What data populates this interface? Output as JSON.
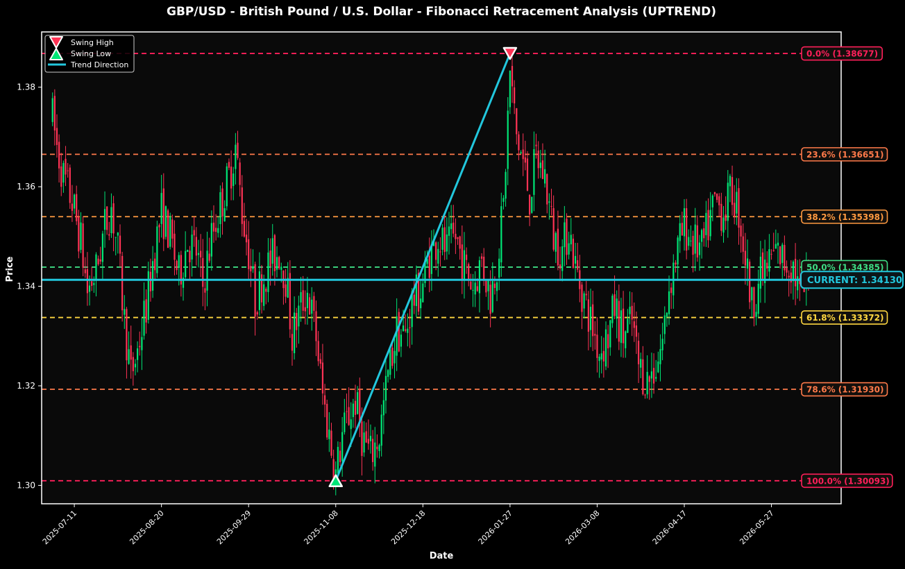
{
  "chart_data": {
    "type": "candlestick",
    "title": "GBP/USD - British Pound / U.S. Dollar - Fibonacci Retracement Analysis (UPTREND)",
    "xlabel": "Date",
    "ylabel": "Price",
    "ylim": [
      1.2963,
      1.3911
    ],
    "yticks": [
      1.3,
      1.32,
      1.34,
      1.36,
      1.38
    ],
    "ytick_labels": [
      "1.30",
      "1.32",
      "1.34",
      "1.36",
      "1.38"
    ],
    "xlim": [
      "2025-06-26",
      "2026-06-28"
    ],
    "xticks": [
      "2025-07-11",
      "2025-08-20",
      "2025-09-29",
      "2025-11-08",
      "2025-12-18",
      "2026-01-27",
      "2026-03-08",
      "2026-04-17",
      "2026-05-27"
    ],
    "grid": false,
    "legend": {
      "position": "top-left",
      "entries": [
        {
          "label": "Swing High",
          "marker": "down-triangle",
          "color": "#ff3355"
        },
        {
          "label": "Swing Low",
          "marker": "up-triangle",
          "color": "#00e676"
        },
        {
          "label": "Trend Direction",
          "marker": "line",
          "color": "#22c7dd"
        }
      ]
    },
    "colors": {
      "background": "#0a0a0a",
      "up_candle": "#00e676",
      "down_candle": "#ff3355",
      "trend": "#22c7dd",
      "current": "#22c7dd"
    },
    "swing_high": {
      "date": "2026-01-27",
      "price": 1.38677
    },
    "swing_low": {
      "date": "2025-11-08",
      "price": 1.30093
    },
    "current": {
      "price": 1.3413,
      "label": "CURRENT: 1.34130"
    },
    "fib_levels": [
      {
        "label": "0.0% (1.38677)",
        "price": 1.38677,
        "color": "#ff1f5a"
      },
      {
        "label": "23.6% (1.36651)",
        "price": 1.36651,
        "color": "#ff7a4a"
      },
      {
        "label": "38.2% (1.35398)",
        "price": 1.35398,
        "color": "#ff9a40"
      },
      {
        "label": "50.0% (1.34385)",
        "price": 1.34385,
        "color": "#3ddc84"
      },
      {
        "label": "61.8% (1.33372)",
        "price": 1.33372,
        "color": "#ffd740"
      },
      {
        "label": "78.6% (1.31930)",
        "price": 1.3193,
        "color": "#ff7a4a"
      },
      {
        "label": "100.0% (1.30093)",
        "price": 1.30093,
        "color": "#ff1f5a"
      }
    ],
    "price_path": [
      [
        "2025-07-01",
        1.374
      ],
      [
        "2025-07-03",
        1.368
      ],
      [
        "2025-07-06",
        1.362
      ],
      [
        "2025-07-10",
        1.357
      ],
      [
        "2025-07-14",
        1.349
      ],
      [
        "2025-07-17",
        1.339
      ],
      [
        "2025-07-21",
        1.343
      ],
      [
        "2025-07-25",
        1.352
      ],
      [
        "2025-07-28",
        1.356
      ],
      [
        "2025-07-31",
        1.347
      ],
      [
        "2025-08-03",
        1.333
      ],
      [
        "2025-08-06",
        1.322
      ],
      [
        "2025-08-09",
        1.327
      ],
      [
        "2025-08-13",
        1.336
      ],
      [
        "2025-08-16",
        1.345
      ],
      [
        "2025-08-20",
        1.355
      ],
      [
        "2025-08-24",
        1.35
      ],
      [
        "2025-08-28",
        1.342
      ],
      [
        "2025-09-01",
        1.349
      ],
      [
        "2025-09-05",
        1.347
      ],
      [
        "2025-09-08",
        1.34
      ],
      [
        "2025-09-12",
        1.35
      ],
      [
        "2025-09-16",
        1.356
      ],
      [
        "2025-09-20",
        1.362
      ],
      [
        "2025-09-23",
        1.368
      ],
      [
        "2025-09-26",
        1.355
      ],
      [
        "2025-09-29",
        1.347
      ],
      [
        "2025-10-02",
        1.337
      ],
      [
        "2025-10-05",
        1.341
      ],
      [
        "2025-10-09",
        1.345
      ],
      [
        "2025-10-13",
        1.347
      ],
      [
        "2025-10-16",
        1.342
      ],
      [
        "2025-10-19",
        1.33
      ],
      [
        "2025-10-23",
        1.336
      ],
      [
        "2025-10-26",
        1.339
      ],
      [
        "2025-10-30",
        1.33
      ],
      [
        "2025-11-02",
        1.318
      ],
      [
        "2025-11-05",
        1.31
      ],
      [
        "2025-11-08",
        1.302
      ],
      [
        "2025-11-11",
        1.31
      ],
      [
        "2025-11-14",
        1.314
      ],
      [
        "2025-11-17",
        1.317
      ],
      [
        "2025-11-20",
        1.31
      ],
      [
        "2025-11-24",
        1.306
      ],
      [
        "2025-11-28",
        1.31
      ],
      [
        "2025-12-02",
        1.322
      ],
      [
        "2025-12-06",
        1.331
      ],
      [
        "2025-12-10",
        1.33
      ],
      [
        "2025-12-13",
        1.337
      ],
      [
        "2025-12-17",
        1.339
      ],
      [
        "2025-12-21",
        1.346
      ],
      [
        "2025-12-25",
        1.35
      ],
      [
        "2025-12-29",
        1.347
      ],
      [
        "2026-01-02",
        1.35
      ],
      [
        "2026-01-06",
        1.344
      ],
      [
        "2026-01-10",
        1.34
      ],
      [
        "2026-01-14",
        1.345
      ],
      [
        "2026-01-18",
        1.338
      ],
      [
        "2026-01-21",
        1.345
      ],
      [
        "2026-01-24",
        1.356
      ],
      [
        "2026-01-27",
        1.383
      ],
      [
        "2026-01-30",
        1.37
      ],
      [
        "2026-02-02",
        1.365
      ],
      [
        "2026-02-05",
        1.358
      ],
      [
        "2026-02-08",
        1.366
      ],
      [
        "2026-02-12",
        1.362
      ],
      [
        "2026-02-16",
        1.35
      ],
      [
        "2026-02-20",
        1.347
      ],
      [
        "2026-02-23",
        1.352
      ],
      [
        "2026-02-26",
        1.344
      ],
      [
        "2026-03-01",
        1.339
      ],
      [
        "2026-03-05",
        1.333
      ],
      [
        "2026-03-09",
        1.327
      ],
      [
        "2026-03-13",
        1.33
      ],
      [
        "2026-03-16",
        1.336
      ],
      [
        "2026-03-20",
        1.33
      ],
      [
        "2026-03-24",
        1.333
      ],
      [
        "2026-03-27",
        1.324
      ],
      [
        "2026-03-31",
        1.321
      ],
      [
        "2026-04-04",
        1.324
      ],
      [
        "2026-04-07",
        1.329
      ],
      [
        "2026-04-10",
        1.34
      ],
      [
        "2026-04-13",
        1.346
      ],
      [
        "2026-04-17",
        1.352
      ],
      [
        "2026-04-21",
        1.349
      ],
      [
        "2026-04-25",
        1.347
      ],
      [
        "2026-04-28",
        1.352
      ],
      [
        "2026-05-01",
        1.357
      ],
      [
        "2026-05-05",
        1.355
      ],
      [
        "2026-05-09",
        1.359
      ],
      [
        "2026-05-12",
        1.355
      ],
      [
        "2026-05-15",
        1.346
      ],
      [
        "2026-05-18",
        1.336
      ],
      [
        "2026-05-21",
        1.341
      ],
      [
        "2026-05-25",
        1.344
      ],
      [
        "2026-05-29",
        1.347
      ],
      [
        "2026-06-02",
        1.345
      ],
      [
        "2026-06-06",
        1.344
      ],
      [
        "2026-06-09",
        1.338
      ],
      [
        "2026-06-13",
        1.341
      ]
    ]
  }
}
